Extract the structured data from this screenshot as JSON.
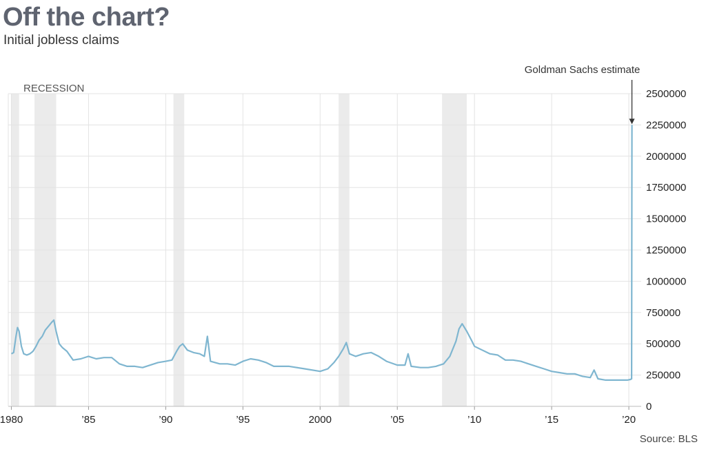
{
  "header": {
    "title": "Off the chart?",
    "subtitle": "Initial jobless claims"
  },
  "source": "Source: BLS",
  "colors": {
    "line": "#7fb6d0",
    "recession": "#ebebeb",
    "grid": "#e3e3e3",
    "title": "#5f6470"
  },
  "chart_data": {
    "type": "line",
    "title": "Off the chart?",
    "subtitle": "Initial jobless claims",
    "xlabel": "",
    "ylabel": "",
    "xlim": [
      1979.8,
      2020.8
    ],
    "ylim": [
      0,
      2500000
    ],
    "grid": true,
    "y_axis_side": "right",
    "x_ticks": [
      {
        "value": 1980,
        "label": "1980"
      },
      {
        "value": 1985,
        "label": "’85"
      },
      {
        "value": 1990,
        "label": "’90"
      },
      {
        "value": 1995,
        "label": "’95"
      },
      {
        "value": 2000,
        "label": "2000"
      },
      {
        "value": 2005,
        "label": "’05"
      },
      {
        "value": 2010,
        "label": "’10"
      },
      {
        "value": 2015,
        "label": "’15"
      },
      {
        "value": 2020,
        "label": "’20"
      }
    ],
    "y_ticks": [
      0,
      250000,
      500000,
      750000,
      1000000,
      1250000,
      1500000,
      1750000,
      2000000,
      2250000,
      2500000
    ],
    "recession_label": "RECESSION",
    "recessions": [
      [
        1980.0,
        1980.5
      ],
      [
        1981.5,
        1982.9
      ],
      [
        1990.5,
        1991.2
      ],
      [
        2001.2,
        2001.9
      ],
      [
        2007.9,
        2009.5
      ]
    ],
    "annotation": {
      "text": "Goldman Sachs estimate",
      "x": 2020.2,
      "y": 2250000
    },
    "series": [
      {
        "x": [
          1980.0,
          1980.15,
          1980.3,
          1980.4,
          1980.5,
          1980.65,
          1980.8,
          1981.0,
          1981.2,
          1981.4,
          1981.6,
          1981.8,
          1982.0,
          1982.2,
          1982.4,
          1982.6,
          1982.75,
          1982.9,
          1983.1,
          1983.3,
          1983.6,
          1984.0,
          1984.5,
          1985.0,
          1985.5,
          1986.0,
          1986.5,
          1987.0,
          1987.5,
          1988.0,
          1988.5,
          1989.0,
          1989.5,
          1990.0,
          1990.4,
          1990.7,
          1990.9,
          1991.1,
          1991.4,
          1991.8,
          1992.2,
          1992.5,
          1992.7,
          1992.9,
          1993.5,
          1994.0,
          1994.5,
          1995.0,
          1995.5,
          1996.0,
          1996.5,
          1997.0,
          1998.0,
          1999.0,
          2000.0,
          2000.5,
          2000.9,
          2001.2,
          2001.5,
          2001.7,
          2001.9,
          2002.3,
          2002.8,
          2003.3,
          2003.8,
          2004.3,
          2005.0,
          2005.5,
          2005.7,
          2005.9,
          2006.5,
          2007.0,
          2007.5,
          2008.0,
          2008.4,
          2008.8,
          2009.0,
          2009.2,
          2009.5,
          2009.8,
          2010.0,
          2010.5,
          2011.0,
          2011.5,
          2012.0,
          2012.5,
          2013.0,
          2013.5,
          2014.0,
          2014.5,
          2015.0,
          2015.5,
          2016.0,
          2016.5,
          2017.0,
          2017.5,
          2017.75,
          2018.0,
          2018.5,
          2019.0,
          2019.5,
          2019.9,
          2020.1,
          2020.18,
          2020.2
        ],
        "values": [
          420000,
          430000,
          560000,
          630000,
          600000,
          480000,
          420000,
          410000,
          420000,
          440000,
          480000,
          530000,
          560000,
          610000,
          640000,
          670000,
          690000,
          600000,
          500000,
          470000,
          440000,
          370000,
          380000,
          400000,
          380000,
          390000,
          390000,
          340000,
          320000,
          320000,
          310000,
          330000,
          350000,
          360000,
          370000,
          440000,
          480000,
          500000,
          450000,
          430000,
          420000,
          400000,
          560000,
          360000,
          340000,
          340000,
          330000,
          360000,
          380000,
          370000,
          350000,
          320000,
          320000,
          300000,
          280000,
          300000,
          350000,
          400000,
          460000,
          510000,
          420000,
          400000,
          420000,
          430000,
          400000,
          360000,
          330000,
          330000,
          420000,
          320000,
          310000,
          310000,
          320000,
          340000,
          400000,
          520000,
          620000,
          660000,
          600000,
          530000,
          480000,
          450000,
          420000,
          410000,
          370000,
          370000,
          360000,
          340000,
          320000,
          300000,
          280000,
          270000,
          260000,
          260000,
          240000,
          230000,
          290000,
          220000,
          210000,
          210000,
          210000,
          210000,
          215000,
          220000,
          2250000
        ]
      }
    ]
  }
}
